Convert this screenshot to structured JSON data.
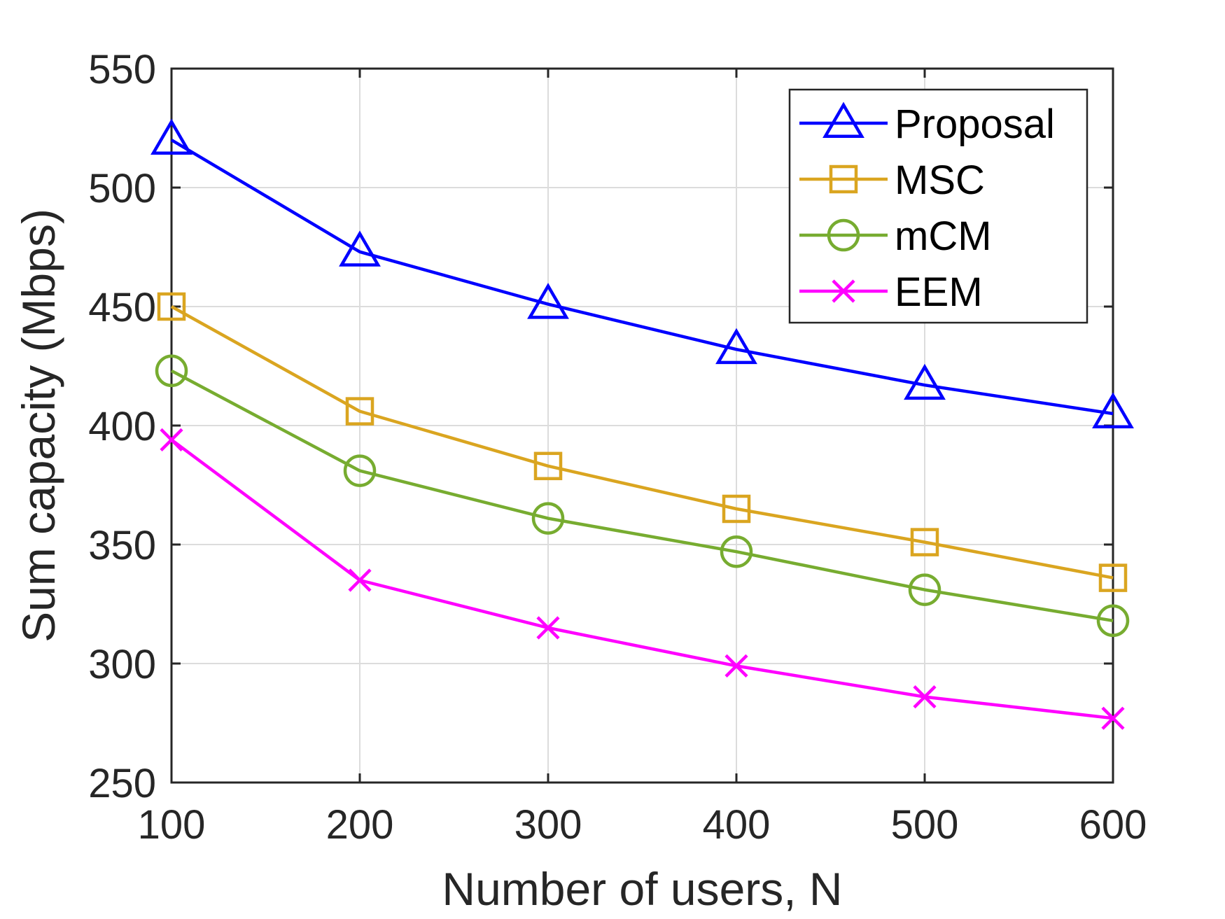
{
  "chart_data": {
    "type": "line",
    "title": "",
    "xlabel": "Number of users, N",
    "ylabel": "Sum capacity (Mbps)",
    "x": [
      100,
      200,
      300,
      400,
      500,
      600
    ],
    "xlim": [
      100,
      600
    ],
    "ylim": [
      250,
      550
    ],
    "xticks": [
      100,
      200,
      300,
      400,
      500,
      600
    ],
    "yticks": [
      250,
      300,
      350,
      400,
      450,
      500,
      550
    ],
    "grid": true,
    "legend_position": "top-right",
    "series": [
      {
        "name": "Proposal",
        "marker": "triangle",
        "color": "#0000ff",
        "values": [
          520,
          473,
          451,
          432,
          417,
          405
        ]
      },
      {
        "name": "MSC",
        "marker": "square",
        "color": "#daa520",
        "values": [
          450,
          406,
          383,
          365,
          351,
          336
        ]
      },
      {
        "name": "mCM",
        "marker": "circle",
        "color": "#77ac30",
        "values": [
          423,
          381,
          361,
          347,
          331,
          318
        ]
      },
      {
        "name": "EEM",
        "marker": "x",
        "color": "#ff00ff",
        "values": [
          394,
          335,
          315,
          299,
          286,
          277
        ]
      }
    ]
  }
}
